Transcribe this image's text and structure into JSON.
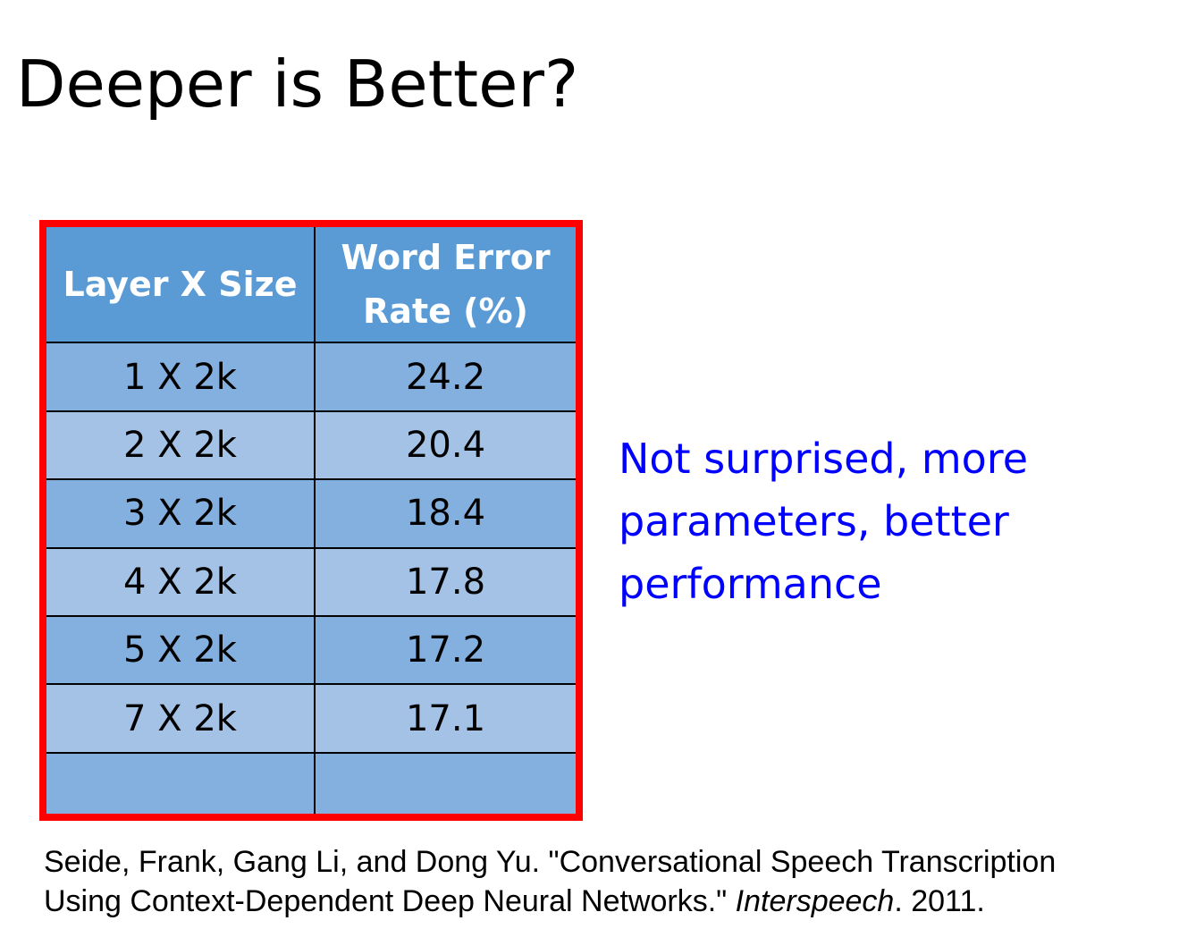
{
  "title": "Deeper is Better?",
  "table": {
    "headers": [
      "Layer X Size",
      "Word Error",
      "Rate (%)"
    ],
    "rows": [
      {
        "layer": "1 X 2k",
        "wer": "24.2"
      },
      {
        "layer": "2 X 2k",
        "wer": "20.4"
      },
      {
        "layer": "3 X 2k",
        "wer": "18.4"
      },
      {
        "layer": "4 X 2k",
        "wer": "17.8"
      },
      {
        "layer": "5 X 2k",
        "wer": "17.2"
      },
      {
        "layer": "7 X 2k",
        "wer": "17.1"
      },
      {
        "layer": "",
        "wer": ""
      }
    ]
  },
  "note": {
    "lines": [
      "Not surprised, more",
      "parameters, better",
      "performance"
    ],
    "color": "#0000ff"
  },
  "citation": {
    "line1": "Seide, Frank, Gang Li, and Dong Yu. \"Conversational Speech Transcription",
    "line2_prefix": "Using Context-Dependent Deep Neural Networks.\" ",
    "journal": "Interspeech",
    "line2_suffix": ". 2011."
  },
  "colors": {
    "frame": "#ff0000",
    "header_bg": "#5b9bd5",
    "row_dark": "#84b0df",
    "row_light": "#a3c2e6"
  }
}
